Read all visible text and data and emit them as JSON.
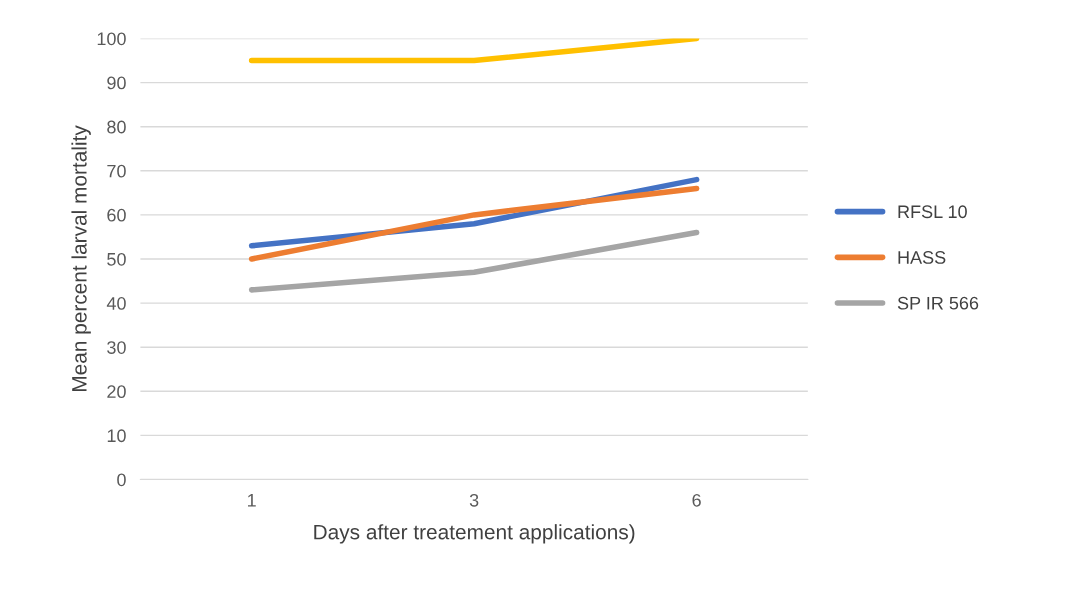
{
  "chart_data": {
    "type": "line",
    "xlabel": "Days after treatement applications)",
    "ylabel": "Mean percent larval mortality",
    "categories": [
      "1",
      "3",
      "6"
    ],
    "series": [
      {
        "name": "RFSL 10",
        "color": "#4472c4",
        "values": [
          53,
          58,
          68
        ]
      },
      {
        "name": "HASS",
        "color": "#ed7d31",
        "values": [
          50,
          60,
          66
        ]
      },
      {
        "name": "SP IR 566",
        "color": "#a5a5a5",
        "values": [
          43,
          47,
          56
        ]
      },
      {
        "color": "#ffc000",
        "values": [
          95,
          95,
          100
        ]
      }
    ],
    "ylim": [
      0,
      100
    ],
    "yticks": [
      0,
      10,
      20,
      30,
      40,
      50,
      60,
      70,
      80,
      90,
      100
    ],
    "grid": "y",
    "legend": "right",
    "marker": "none",
    "line_style": "solid"
  }
}
